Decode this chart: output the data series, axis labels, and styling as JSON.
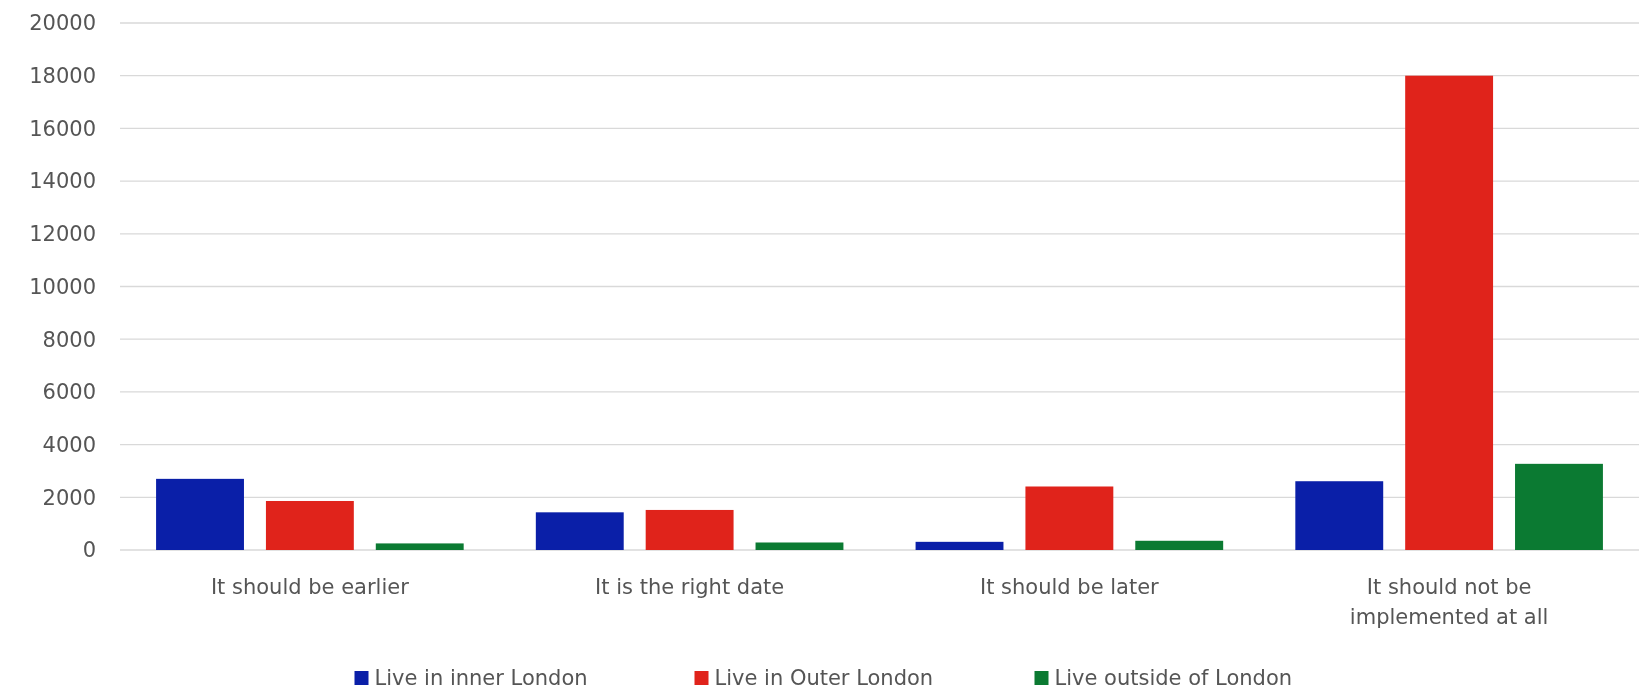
{
  "chart_data": {
    "type": "bar",
    "categories": [
      "It should be earlier",
      "It is the right date",
      "It should be later",
      "It should not be implemented at all"
    ],
    "series": [
      {
        "name": "Live in inner London",
        "color": "#0a1fa8",
        "values": [
          2700,
          1430,
          310,
          2610
        ]
      },
      {
        "name": "Live in Outer London",
        "color": "#e0231b",
        "values": [
          1860,
          1520,
          2410,
          18000
        ]
      },
      {
        "name": "Live outside of London",
        "color": "#0b7a32",
        "values": [
          250,
          285,
          350,
          3270
        ]
      }
    ],
    "ylim": [
      0,
      20000
    ],
    "yticks": [
      0,
      2000,
      4000,
      6000,
      8000,
      10000,
      12000,
      14000,
      16000,
      18000,
      20000
    ],
    "grid": "y",
    "legend": "bottom"
  }
}
